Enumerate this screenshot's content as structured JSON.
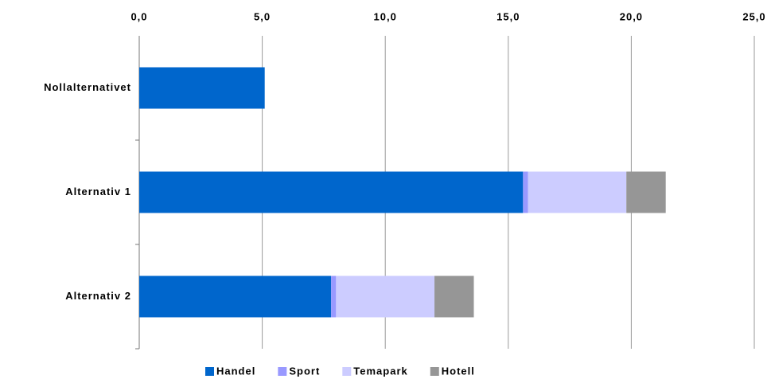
{
  "chart_data": {
    "type": "stacked_barh",
    "categories": [
      "Nollalternativet",
      "Alternativ 1",
      "Alternativ 2"
    ],
    "series": [
      {
        "name": "Handel",
        "color": "#0066cc",
        "values": [
          5.1,
          15.6,
          7.8
        ]
      },
      {
        "name": "Sport",
        "color": "#9999ff",
        "values": [
          0,
          0.2,
          0.2
        ]
      },
      {
        "name": "Temapark",
        "color": "#ccccff",
        "values": [
          0,
          4.0,
          4.0
        ]
      },
      {
        "name": "Hotell",
        "color": "#969696",
        "values": [
          0,
          1.6,
          1.6
        ]
      }
    ],
    "xlim": [
      0,
      25
    ],
    "xticks": [
      {
        "value": 0,
        "label": "0,0"
      },
      {
        "value": 5,
        "label": "5,0"
      },
      {
        "value": 10,
        "label": "10,0"
      },
      {
        "value": 15,
        "label": "15,0"
      },
      {
        "value": 20,
        "label": "20,0"
      },
      {
        "value": 25,
        "label": "25,0"
      }
    ],
    "grid": true,
    "legend": "bottom"
  }
}
